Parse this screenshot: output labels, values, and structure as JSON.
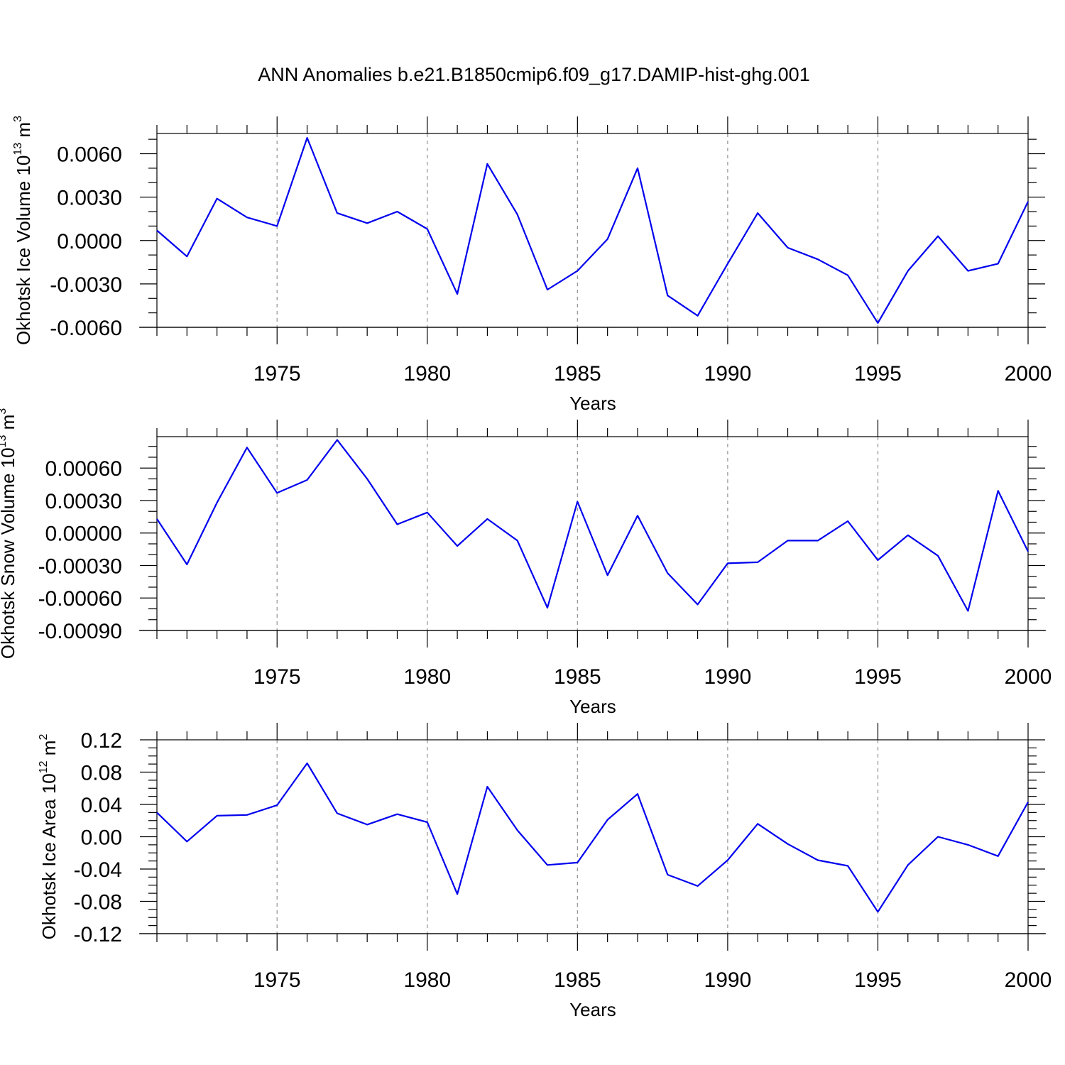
{
  "title": "ANN Anomalies b.e21.B1850cmip6.f09_g17.DAMIP-hist-ghg.001",
  "series_color": "#0000ee",
  "chart_data": [
    {
      "type": "line",
      "ylabel": "Okhotsk Ice Volume 10",
      "ylabel_exp": "13",
      "ylabel_unit": " m",
      "ylabel_unit_exp": "3",
      "xlabel": "Years",
      "xlim": [
        1971,
        2000
      ],
      "ylim": [
        -0.006,
        0.0074
      ],
      "yticks": [
        -0.006,
        -0.003,
        0.0,
        0.003,
        0.006
      ],
      "ytick_labels": [
        "-0.0060",
        "-0.0030",
        "0.0000",
        "0.0030",
        "0.0060"
      ],
      "yminor_step": 0.001,
      "xticks": [
        1975,
        1980,
        1985,
        1990,
        1995,
        2000
      ],
      "xtick_labels": [
        "1975",
        "1980",
        "1985",
        "1990",
        "1995",
        "2000"
      ],
      "x": [
        1971,
        1972,
        1973,
        1974,
        1975,
        1976,
        1977,
        1978,
        1979,
        1980,
        1981,
        1982,
        1983,
        1984,
        1985,
        1986,
        1987,
        1988,
        1989,
        1990,
        1991,
        1992,
        1993,
        1994,
        1995,
        1996,
        1997,
        1998,
        1999,
        2000
      ],
      "y": [
        0.0007,
        -0.0011,
        0.0029,
        0.0016,
        0.001,
        0.0071,
        0.0019,
        0.0012,
        0.002,
        0.0008,
        -0.0037,
        0.0053,
        0.0018,
        -0.0034,
        -0.0021,
        0.0001,
        0.005,
        -0.0038,
        -0.0052,
        -0.0016,
        0.0019,
        -0.0005,
        -0.0013,
        -0.0024,
        -0.0057,
        -0.0021,
        0.0003,
        -0.0021,
        -0.0016,
        0.0027
      ]
    },
    {
      "type": "line",
      "ylabel": "Okhotsk Snow Volume 10",
      "ylabel_exp": "13",
      "ylabel_unit": " m",
      "ylabel_unit_exp": "3",
      "xlabel": "Years",
      "xlim": [
        1971,
        2000
      ],
      "ylim": [
        -0.0009,
        0.00089
      ],
      "yticks": [
        -0.0009,
        -0.0006,
        -0.0003,
        0.0,
        0.0003,
        0.0006
      ],
      "ytick_labels": [
        "-0.00090",
        "-0.00060",
        "-0.00030",
        "0.00000",
        "0.00030",
        "0.00060"
      ],
      "yminor_step": 0.0001,
      "xticks": [
        1975,
        1980,
        1985,
        1990,
        1995,
        2000
      ],
      "xtick_labels": [
        "1975",
        "1980",
        "1985",
        "1990",
        "1995",
        "2000"
      ],
      "x": [
        1971,
        1972,
        1973,
        1974,
        1975,
        1976,
        1977,
        1978,
        1979,
        1980,
        1981,
        1982,
        1983,
        1984,
        1985,
        1986,
        1987,
        1988,
        1989,
        1990,
        1991,
        1992,
        1993,
        1994,
        1995,
        1996,
        1997,
        1998,
        1999,
        2000
      ],
      "y": [
        0.00013,
        -0.00029,
        0.00028,
        0.00079,
        0.00037,
        0.00049,
        0.00086,
        0.0005,
        8e-05,
        0.00019,
        -0.00012,
        0.00013,
        -7e-05,
        -0.00069,
        0.00029,
        -0.00039,
        0.00016,
        -0.00037,
        -0.00066,
        -0.00028,
        -0.00027,
        -7e-05,
        -7e-05,
        0.00011,
        -0.00025,
        -2e-05,
        -0.00021,
        -0.00072,
        0.00039,
        -0.00017
      ]
    },
    {
      "type": "line",
      "ylabel": "Okhotsk Ice Area 10",
      "ylabel_exp": "12",
      "ylabel_unit": " m",
      "ylabel_unit_exp": "2",
      "xlabel": "Years",
      "xlim": [
        1971,
        2000
      ],
      "ylim": [
        -0.12,
        0.12
      ],
      "yticks": [
        -0.12,
        -0.08,
        -0.04,
        0.0,
        0.04,
        0.08,
        0.12
      ],
      "ytick_labels": [
        "-0.12",
        "-0.08",
        "-0.04",
        "0.00",
        "0.04",
        "0.08",
        "0.12"
      ],
      "yminor_step": 0.01,
      "xticks": [
        1975,
        1980,
        1985,
        1990,
        1995,
        2000
      ],
      "xtick_labels": [
        "1975",
        "1980",
        "1985",
        "1990",
        "1995",
        "2000"
      ],
      "x": [
        1971,
        1972,
        1973,
        1974,
        1975,
        1976,
        1977,
        1978,
        1979,
        1980,
        1981,
        1982,
        1983,
        1984,
        1985,
        1986,
        1987,
        1988,
        1989,
        1990,
        1991,
        1992,
        1993,
        1994,
        1995,
        1996,
        1997,
        1998,
        1999,
        2000
      ],
      "y": [
        0.03,
        -0.006,
        0.026,
        0.027,
        0.039,
        0.091,
        0.029,
        0.015,
        0.028,
        0.018,
        -0.071,
        0.062,
        0.008,
        -0.035,
        -0.032,
        0.021,
        0.053,
        -0.047,
        -0.061,
        -0.029,
        0.016,
        -0.009,
        -0.029,
        -0.036,
        -0.093,
        -0.035,
        0.0,
        -0.01,
        -0.024,
        0.043
      ]
    }
  ]
}
